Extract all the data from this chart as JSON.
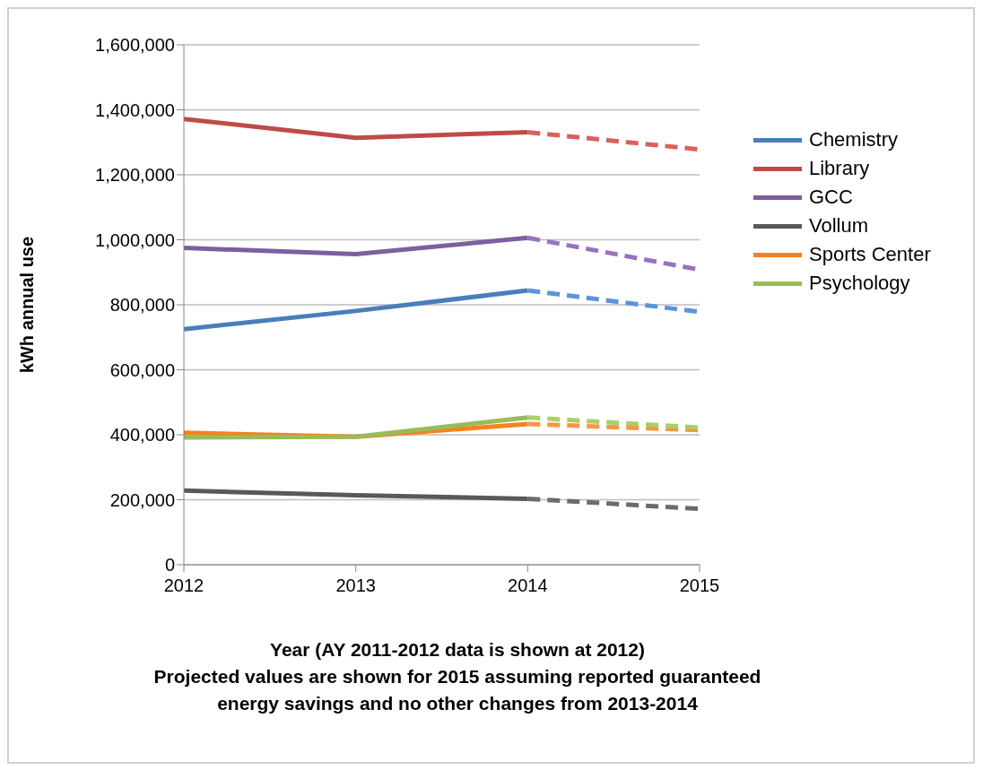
{
  "chart_data": {
    "type": "line",
    "xlabel": "Year (AY 2011-2012 data is shown at 2012)",
    "ylabel": "kWh annual use",
    "annotations": [
      "Projected values are shown for 2015 assuming reported guaranteed energy savings and no other changes from 2013-2014"
    ],
    "x": [
      2012,
      2013,
      2014,
      2015
    ],
    "xlim": [
      2012,
      2015
    ],
    "xticks": [
      2012,
      2013,
      2014,
      2015
    ],
    "ylim": [
      0,
      1600000
    ],
    "yticks": [
      {
        "value": 0,
        "label": "0"
      },
      {
        "value": 200000,
        "label": "200,000"
      },
      {
        "value": 400000,
        "label": "400,000"
      },
      {
        "value": 600000,
        "label": "600,000"
      },
      {
        "value": 800000,
        "label": "800,000"
      },
      {
        "value": 1000000,
        "label": "1,000,000"
      },
      {
        "value": 1200000,
        "label": "1,200,000"
      },
      {
        "value": 1400000,
        "label": "1,400,000"
      },
      {
        "value": 1600000,
        "label": "1,600,000"
      }
    ],
    "grid": "y",
    "legend": "right",
    "series": [
      {
        "name": "Chemistry",
        "color": "#4a7ebb",
        "values": [
          725000,
          781000,
          844000,
          null
        ]
      },
      {
        "name": "Library",
        "color": "#be4b48",
        "values": [
          1372000,
          1314000,
          1331000,
          null
        ]
      },
      {
        "name": "GCC",
        "color": "#7d5fa0",
        "values": [
          975000,
          956000,
          1006000,
          null
        ]
      },
      {
        "name": "Vollum",
        "color": "#595959",
        "values": [
          228000,
          214000,
          203000,
          null
        ]
      },
      {
        "name": "Sports Center",
        "color": "#f58220",
        "values": [
          406000,
          394000,
          433000,
          null
        ]
      },
      {
        "name": "Psychology",
        "color": "#9bbb59",
        "values": [
          392000,
          394000,
          453000,
          null
        ]
      },
      {
        "color": "#5b95d9",
        "line_style": "dashed",
        "values": [
          null,
          null,
          844000,
          778000
        ]
      },
      {
        "color": "#d9605c",
        "line_style": "dashed",
        "values": [
          null,
          null,
          1331000,
          1278000
        ]
      },
      {
        "color": "#9673bf",
        "line_style": "dashed",
        "values": [
          null,
          null,
          1006000,
          908000
        ]
      },
      {
        "color": "#6b6b6b",
        "line_style": "dashed",
        "values": [
          null,
          null,
          203000,
          172000
        ]
      },
      {
        "color": "#f79646",
        "line_style": "dashed",
        "values": [
          null,
          null,
          433000,
          414000
        ]
      },
      {
        "color": "#a9cf6b",
        "line_style": "dashed",
        "values": [
          null,
          null,
          453000,
          422000
        ]
      }
    ]
  }
}
